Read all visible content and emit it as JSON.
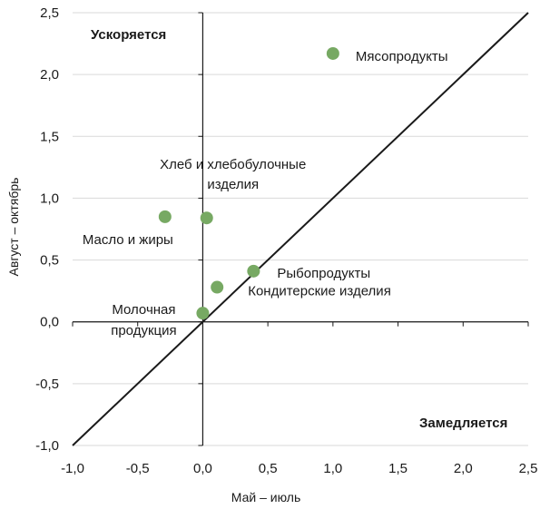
{
  "chart_data": {
    "type": "scatter",
    "xlabel": "Май – июль",
    "ylabel": "Август – октябрь",
    "xlim": [
      -1.0,
      2.5
    ],
    "ylim": [
      -1.0,
      2.5
    ],
    "x_ticks": [
      {
        "value": -1.0,
        "label": "-1,0"
      },
      {
        "value": -0.5,
        "label": "-0,5"
      },
      {
        "value": 0.0,
        "label": "0,0"
      },
      {
        "value": 0.5,
        "label": "0,5"
      },
      {
        "value": 1.0,
        "label": "1,0"
      },
      {
        "value": 1.5,
        "label": "1,5"
      },
      {
        "value": 2.0,
        "label": "2,0"
      },
      {
        "value": 2.5,
        "label": "2,5"
      }
    ],
    "y_ticks": [
      {
        "value": -1.0,
        "label": "-1,0"
      },
      {
        "value": -0.5,
        "label": "-0,5"
      },
      {
        "value": 0.0,
        "label": "0,0"
      },
      {
        "value": 0.5,
        "label": "0,5"
      },
      {
        "value": 1.0,
        "label": "1,0"
      },
      {
        "value": 1.5,
        "label": "1,5"
      },
      {
        "value": 2.0,
        "label": "2,0"
      },
      {
        "value": 2.5,
        "label": "2,5"
      }
    ],
    "grid": {
      "horizontal": true,
      "vertical": false
    },
    "axes_cross_at": [
      0.0,
      0.0
    ],
    "reference_line": {
      "from": [
        -1.0,
        -1.0
      ],
      "to": [
        2.5,
        2.5
      ]
    },
    "region_labels": [
      {
        "text": "Ускоряется",
        "position": "top-left"
      },
      {
        "text": "Замедляется",
        "position": "bottom-right"
      }
    ],
    "points": [
      {
        "label_lines": [
          "Мясопродукты"
        ],
        "x": 1.0,
        "y": 2.17
      },
      {
        "label_lines": [
          "Хлеб и хлебобулочные",
          "изделия"
        ],
        "x": 0.03,
        "y": 0.84
      },
      {
        "label_lines": [
          "Масло и жиры"
        ],
        "x": -0.29,
        "y": 0.85
      },
      {
        "label_lines": [
          "Рыбопродукты"
        ],
        "x": 0.39,
        "y": 0.41
      },
      {
        "label_lines": [
          "Кондитерские изделия"
        ],
        "x": 0.11,
        "y": 0.28
      },
      {
        "label_lines": [
          "Молочная",
          "продукция"
        ],
        "x": 0.0,
        "y": 0.07
      }
    ],
    "colors": {
      "points": "#77a963",
      "reference_line": "#1a1a1a",
      "axes": "#1a1a1a",
      "grid": "#d9d9d9",
      "text": "#1a1a1a"
    }
  }
}
